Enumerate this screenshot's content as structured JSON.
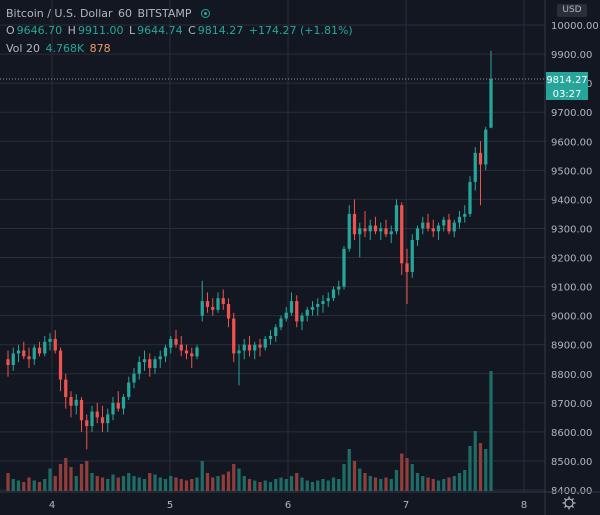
{
  "header": {
    "symbol": "Bitcoin / U.S. Dollar",
    "interval": "60",
    "exchange": "BITSTAMP",
    "ohlc": {
      "o_label": "O",
      "o": "9646.70",
      "h_label": "H",
      "h": "9911.00",
      "l_label": "L",
      "l": "9644.74",
      "c_label": "C",
      "c": "9814.27",
      "change": "+174.27 (+1.81%)"
    },
    "volume": {
      "label": "Vol 20",
      "value": "4.768K",
      "value2": "878"
    }
  },
  "currency_badge": "USD",
  "price_tag": {
    "price": "9814.27",
    "countdown": "03:27"
  },
  "colors": {
    "background": "#131722",
    "grid": "#2a2e39",
    "up": "#26a69a",
    "down": "#ef5350",
    "vol_up": "#1f6b65",
    "vol_down": "#8f3e3c",
    "text": "#b2b5be",
    "crosshair": "#9598a1"
  },
  "chart_data": {
    "type": "candlestick",
    "y_axis": {
      "ticks": [
        "10000.00",
        "9900.00",
        "9800.00",
        "9700.00",
        "9600.00",
        "9500.00",
        "9400.00",
        "9300.00",
        "9200.00",
        "9100.00",
        "9000.00",
        "8900.00",
        "8800.00",
        "8700.00",
        "8600.00",
        "8500.00",
        "8400.00"
      ],
      "range": [
        8400,
        10000
      ]
    },
    "x_axis": {
      "ticks": [
        "4",
        "5",
        "6",
        "7",
        "8"
      ]
    },
    "crosshair_price": 9814.27,
    "candles": [
      [
        8850,
        8880,
        8790,
        8830,
        12
      ],
      [
        8830,
        8890,
        8810,
        8870,
        8
      ],
      [
        8870,
        8900,
        8840,
        8880,
        7
      ],
      [
        8880,
        8910,
        8850,
        8860,
        6
      ],
      [
        8860,
        8890,
        8820,
        8850,
        9
      ],
      [
        8850,
        8900,
        8830,
        8890,
        7
      ],
      [
        8890,
        8910,
        8860,
        8870,
        6
      ],
      [
        8870,
        8930,
        8860,
        8910,
        8
      ],
      [
        8910,
        8940,
        8880,
        8920,
        15
      ],
      [
        8920,
        8950,
        8870,
        8880,
        10
      ],
      [
        8880,
        8890,
        8740,
        8780,
        18
      ],
      [
        8780,
        8800,
        8680,
        8720,
        22
      ],
      [
        8720,
        8740,
        8650,
        8690,
        16
      ],
      [
        8690,
        8730,
        8660,
        8710,
        10
      ],
      [
        8710,
        8720,
        8600,
        8640,
        18
      ],
      [
        8640,
        8660,
        8540,
        8620,
        20
      ],
      [
        8620,
        8690,
        8600,
        8670,
        12
      ],
      [
        8670,
        8700,
        8630,
        8650,
        10
      ],
      [
        8650,
        8690,
        8600,
        8630,
        9
      ],
      [
        8630,
        8680,
        8600,
        8660,
        8
      ],
      [
        8660,
        8720,
        8640,
        8700,
        11
      ],
      [
        8700,
        8740,
        8670,
        8680,
        9
      ],
      [
        8680,
        8730,
        8660,
        8720,
        10
      ],
      [
        8720,
        8790,
        8710,
        8770,
        12
      ],
      [
        8770,
        8820,
        8750,
        8800,
        10
      ],
      [
        8800,
        8860,
        8780,
        8840,
        9
      ],
      [
        8840,
        8880,
        8810,
        8850,
        8
      ],
      [
        8850,
        8870,
        8790,
        8820,
        12
      ],
      [
        8820,
        8860,
        8800,
        8850,
        11
      ],
      [
        8850,
        8880,
        8820,
        8860,
        9
      ],
      [
        8860,
        8900,
        8840,
        8890,
        8
      ],
      [
        8890,
        8930,
        8870,
        8920,
        10
      ],
      [
        8920,
        8950,
        8890,
        8900,
        9
      ],
      [
        8900,
        8930,
        8860,
        8880,
        8
      ],
      [
        8880,
        8900,
        8850,
        8870,
        7
      ],
      [
        8870,
        8890,
        8820,
        8860,
        8
      ],
      [
        8860,
        8900,
        8850,
        8890,
        9
      ],
      [
        9000,
        9120,
        8980,
        9050,
        20
      ],
      [
        9050,
        9080,
        9010,
        9030,
        12
      ],
      [
        9030,
        9060,
        9000,
        9020,
        9
      ],
      [
        9020,
        9080,
        9010,
        9060,
        10
      ],
      [
        9060,
        9090,
        9020,
        9040,
        11
      ],
      [
        9040,
        9060,
        8960,
        8990,
        13
      ],
      [
        8990,
        9010,
        8840,
        8870,
        18
      ],
      [
        8870,
        8900,
        8760,
        8880,
        15
      ],
      [
        8880,
        8920,
        8850,
        8900,
        10
      ],
      [
        8900,
        8930,
        8860,
        8880,
        8
      ],
      [
        8880,
        8910,
        8850,
        8900,
        7
      ],
      [
        8900,
        8920,
        8860,
        8890,
        6
      ],
      [
        8890,
        8930,
        8880,
        8920,
        7
      ],
      [
        8920,
        8950,
        8900,
        8930,
        6
      ],
      [
        8930,
        8970,
        8910,
        8960,
        8
      ],
      [
        8960,
        9000,
        8950,
        8990,
        9
      ],
      [
        8990,
        9030,
        8980,
        9010,
        8
      ],
      [
        9010,
        9080,
        9000,
        9050,
        10
      ],
      [
        9050,
        9070,
        8960,
        8980,
        12
      ],
      [
        8980,
        9010,
        8950,
        9000,
        9
      ],
      [
        9000,
        9030,
        8980,
        9020,
        7
      ],
      [
        9020,
        9050,
        9000,
        9030,
        6
      ],
      [
        9030,
        9060,
        9000,
        9040,
        7
      ],
      [
        9040,
        9070,
        9010,
        9050,
        8
      ],
      [
        9050,
        9080,
        9030,
        9060,
        7
      ],
      [
        9060,
        9100,
        9050,
        9090,
        9
      ],
      [
        9090,
        9120,
        9070,
        9100,
        8
      ],
      [
        9100,
        9240,
        9090,
        9230,
        18
      ],
      [
        9230,
        9380,
        9220,
        9350,
        28
      ],
      [
        9350,
        9400,
        9260,
        9280,
        20
      ],
      [
        9280,
        9320,
        9200,
        9300,
        15
      ],
      [
        9300,
        9360,
        9270,
        9290,
        12
      ],
      [
        9290,
        9330,
        9260,
        9310,
        10
      ],
      [
        9310,
        9340,
        9280,
        9290,
        9
      ],
      [
        9290,
        9320,
        9260,
        9300,
        8
      ],
      [
        9300,
        9330,
        9270,
        9280,
        9
      ],
      [
        9280,
        9310,
        9250,
        9290,
        8
      ],
      [
        9290,
        9400,
        9280,
        9380,
        14
      ],
      [
        9380,
        9390,
        9140,
        9180,
        25
      ],
      [
        9180,
        9230,
        9040,
        9150,
        22
      ],
      [
        9150,
        9280,
        9130,
        9260,
        18
      ],
      [
        9260,
        9310,
        9240,
        9300,
        12
      ],
      [
        9300,
        9340,
        9280,
        9320,
        10
      ],
      [
        9320,
        9350,
        9290,
        9300,
        9
      ],
      [
        9300,
        9330,
        9270,
        9290,
        8
      ],
      [
        9290,
        9320,
        9260,
        9310,
        7
      ],
      [
        9310,
        9340,
        9290,
        9330,
        8
      ],
      [
        9330,
        9350,
        9280,
        9290,
        9
      ],
      [
        9290,
        9330,
        9270,
        9320,
        10
      ],
      [
        9320,
        9360,
        9300,
        9340,
        12
      ],
      [
        9340,
        9380,
        9320,
        9350,
        14
      ],
      [
        9350,
        9480,
        9340,
        9460,
        30
      ],
      [
        9460,
        9580,
        9430,
        9560,
        40
      ],
      [
        9560,
        9600,
        9380,
        9520,
        32
      ],
      [
        9520,
        9650,
        9500,
        9640,
        28
      ],
      [
        9646.7,
        9911,
        9644.74,
        9814.27,
        80
      ]
    ]
  }
}
